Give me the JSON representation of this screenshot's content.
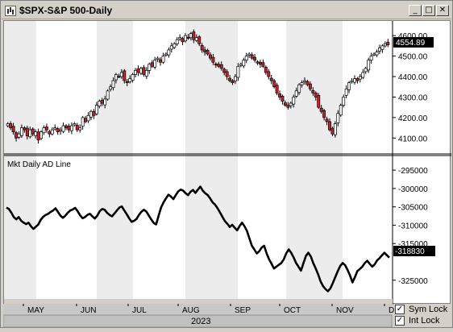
{
  "window": {
    "title": "$SPX-S&P 500-Daily",
    "buttons": {
      "minimize": "_",
      "maximize": "□",
      "close": "✕"
    }
  },
  "price_panel": {
    "last_price": "4554.89",
    "y_ticks": [
      "4600.00",
      "4500.00",
      "4400.00",
      "4300.00",
      "4200.00",
      "4100.00"
    ]
  },
  "ad_panel": {
    "label": "Mkt Daily AD Line",
    "last_value": "-318830",
    "y_ticks": [
      "-295000",
      "-300000",
      "-305000",
      "-310000",
      "-315000",
      "-325000"
    ]
  },
  "x_axis": {
    "months": [
      "MAY",
      "JUN",
      "JUL",
      "AUG",
      "SEP",
      "OCT",
      "NOV",
      "D"
    ],
    "year": "2023"
  },
  "locks": {
    "sym_lock": {
      "label": "Sym Lock",
      "checked": "✓"
    },
    "int_lock": {
      "label": "Int Lock",
      "checked": "✓"
    }
  },
  "colors": {
    "up": "#ffffff",
    "down": "#cc1f2f",
    "shade": "#ececec",
    "line": "#000000"
  },
  "chart_data": [
    {
      "type": "candlestick",
      "ylim": [
        4050,
        4640
      ],
      "closes": [
        4170,
        4150,
        4130,
        4100,
        4120,
        4150,
        4140,
        4110,
        4140,
        4120,
        4130,
        4090,
        4130,
        4150,
        4140,
        4120,
        4140,
        4150,
        4130,
        4140,
        4160,
        4150,
        4140,
        4160,
        4170,
        4140,
        4150,
        4200,
        4180,
        4210,
        4230,
        4210,
        4260,
        4280,
        4270,
        4290,
        4330,
        4350,
        4380,
        4410,
        4400,
        4420,
        4380,
        4370,
        4390,
        4410,
        4430,
        4420,
        4440,
        4410,
        4430,
        4460,
        4450,
        4480,
        4490,
        4470,
        4500,
        4510,
        4530,
        4550,
        4560,
        4580,
        4590,
        4570,
        4600,
        4590,
        4610,
        4580,
        4590,
        4560,
        4530,
        4520,
        4510,
        4490,
        4470,
        4460,
        4450,
        4440,
        4420,
        4400,
        4380,
        4370,
        4400,
        4450,
        4460,
        4480,
        4500,
        4510,
        4490,
        4480,
        4470,
        4460,
        4450,
        4420,
        4400,
        4380,
        4350,
        4320,
        4300,
        4280,
        4260,
        4250,
        4270,
        4300,
        4330,
        4360,
        4370,
        4380,
        4360,
        4340,
        4320,
        4300,
        4250,
        4230,
        4200,
        4180,
        4140,
        4120,
        4170,
        4220,
        4260,
        4300,
        4340,
        4370,
        4380,
        4390,
        4380,
        4400,
        4420,
        4440,
        4480,
        4500,
        4510,
        4520,
        4540,
        4550,
        4560,
        4554.89
      ]
    },
    {
      "type": "line",
      "ylim": [
        -329000,
        -293000
      ],
      "values": [
        -305200,
        -305600,
        -306600,
        -307800,
        -308400,
        -307800,
        -308800,
        -309300,
        -309700,
        -309300,
        -310300,
        -311000,
        -310400,
        -309800,
        -308500,
        -307700,
        -307200,
        -306900,
        -306400,
        -306000,
        -305400,
        -306400,
        -307400,
        -308000,
        -307400,
        -306600,
        -306000,
        -305700,
        -305300,
        -306200,
        -307300,
        -308100,
        -307800,
        -307200,
        -306900,
        -307600,
        -308200,
        -307400,
        -306200,
        -305600,
        -305800,
        -306600,
        -307200,
        -307600,
        -306800,
        -306000,
        -305200,
        -304900,
        -306000,
        -307000,
        -308100,
        -309100,
        -308800,
        -308300,
        -307200,
        -306300,
        -305800,
        -306300,
        -307400,
        -308400,
        -309400,
        -309800,
        -307400,
        -305200,
        -303800,
        -302700,
        -301700,
        -302200,
        -302900,
        -301800,
        -300800,
        -300300,
        -300600,
        -301300,
        -301800,
        -300900,
        -300400,
        -301200,
        -300300,
        -299500,
        -300600,
        -301300,
        -301800,
        -302700,
        -303800,
        -304400,
        -305400,
        -306500,
        -307700,
        -308900,
        -309600,
        -310500,
        -309900,
        -310700,
        -311400,
        -310200,
        -309300,
        -310300,
        -311600,
        -313600,
        -315600,
        -316600,
        -317700,
        -317100,
        -316100,
        -315600,
        -317700,
        -319300,
        -320500,
        -321800,
        -321300,
        -320800,
        -320300,
        -319300,
        -317700,
        -316600,
        -317500,
        -318800,
        -320300,
        -321300,
        -322400,
        -320400,
        -318400,
        -317500,
        -318500,
        -320300,
        -321800,
        -323400,
        -325300,
        -326600,
        -327400,
        -328000,
        -327200,
        -325700,
        -324100,
        -322500,
        -321100,
        -320300,
        -320900,
        -322200,
        -323700,
        -325600,
        -324100,
        -322500,
        -321900,
        -321300,
        -320300,
        -319700,
        -320500,
        -321300,
        -320700,
        -319600,
        -319000,
        -318200,
        -317500,
        -318200,
        -318830
      ]
    }
  ]
}
